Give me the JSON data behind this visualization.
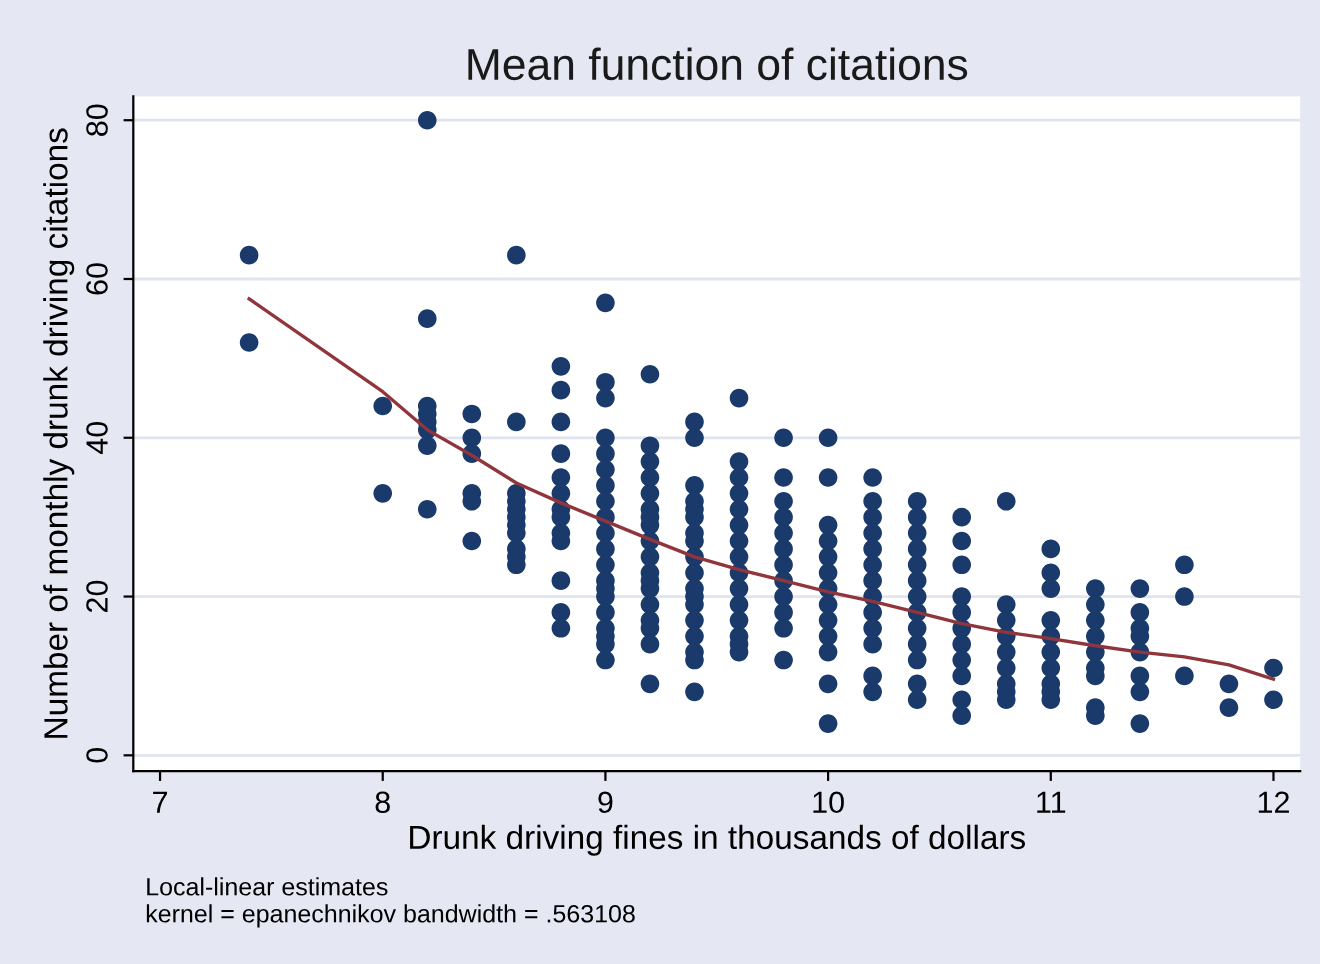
{
  "chart_data": {
    "type": "scatter",
    "title": "Mean function of citations",
    "xlabel": "Drunk driving fines in thousands of dollars",
    "ylabel": "Number of monthly drunk driving citations",
    "annotations": [
      "Local-linear estimates",
      "kernel = epanechnikov bandwidth = .563108"
    ],
    "series": [
      {
        "color": "#1a3a6c",
        "marker": "circle",
        "x": [
          7.4,
          7.4,
          8.0,
          8.0,
          8.2,
          8.2,
          8.2,
          8.2,
          8.2,
          8.2,
          8.2,
          8.2,
          8.4,
          8.4,
          8.4,
          8.4,
          8.4,
          8.4,
          8.6,
          8.6,
          8.6,
          8.6,
          8.6,
          8.6,
          8.6,
          8.6,
          8.6,
          8.6,
          8.6,
          8.8,
          8.8,
          8.8,
          8.8,
          8.8,
          8.8,
          8.8,
          8.8,
          8.8,
          8.8,
          8.8,
          8.8,
          8.8,
          9.0,
          9.0,
          9.0,
          9.0,
          9.0,
          9.0,
          9.0,
          9.0,
          9.0,
          9.0,
          9.0,
          9.0,
          9.0,
          9.0,
          9.0,
          9.0,
          9.0,
          9.0,
          9.0,
          9.0,
          9.2,
          9.2,
          9.2,
          9.2,
          9.2,
          9.2,
          9.2,
          9.2,
          9.2,
          9.2,
          9.2,
          9.2,
          9.2,
          9.2,
          9.2,
          9.2,
          9.2,
          9.2,
          9.4,
          9.4,
          9.4,
          9.4,
          9.4,
          9.4,
          9.4,
          9.4,
          9.4,
          9.4,
          9.4,
          9.4,
          9.4,
          9.4,
          9.4,
          9.4,
          9.4,
          9.4,
          9.6,
          9.6,
          9.6,
          9.6,
          9.6,
          9.6,
          9.6,
          9.6,
          9.6,
          9.6,
          9.6,
          9.6,
          9.6,
          9.6,
          9.6,
          9.8,
          9.8,
          9.8,
          9.8,
          9.8,
          9.8,
          9.8,
          9.8,
          9.8,
          9.8,
          9.8,
          9.8,
          10.0,
          10.0,
          10.0,
          10.0,
          10.0,
          10.0,
          10.0,
          10.0,
          10.0,
          10.0,
          10.0,
          10.0,
          10.0,
          10.2,
          10.2,
          10.2,
          10.2,
          10.2,
          10.2,
          10.2,
          10.2,
          10.2,
          10.2,
          10.2,
          10.2,
          10.2,
          10.4,
          10.4,
          10.4,
          10.4,
          10.4,
          10.4,
          10.4,
          10.4,
          10.4,
          10.4,
          10.4,
          10.4,
          10.4,
          10.6,
          10.6,
          10.6,
          10.6,
          10.6,
          10.6,
          10.6,
          10.6,
          10.6,
          10.6,
          10.6,
          10.8,
          10.8,
          10.8,
          10.8,
          10.8,
          10.8,
          10.8,
          10.8,
          10.8,
          11.0,
          11.0,
          11.0,
          11.0,
          11.0,
          11.0,
          11.0,
          11.0,
          11.0,
          11.0,
          11.2,
          11.2,
          11.2,
          11.2,
          11.2,
          11.2,
          11.2,
          11.2,
          11.2,
          11.4,
          11.4,
          11.4,
          11.4,
          11.4,
          11.4,
          11.4,
          11.4,
          11.6,
          11.6,
          11.6,
          11.8,
          11.8,
          12.0,
          12.0
        ],
        "values": [
          63,
          52,
          44,
          33,
          80,
          55,
          44,
          43,
          42,
          41,
          39,
          31,
          43,
          40,
          38,
          33,
          32,
          27,
          63,
          42,
          33,
          32,
          31,
          30,
          29,
          28,
          26,
          25,
          24,
          49,
          46,
          42,
          38,
          35,
          33,
          31,
          30,
          28,
          27,
          22,
          18,
          16,
          57,
          47,
          45,
          40,
          38,
          36,
          34,
          32,
          30,
          28,
          26,
          24,
          22,
          20,
          18,
          16,
          15,
          14,
          12,
          21,
          48,
          39,
          37,
          35,
          33,
          31,
          30,
          27,
          25,
          23,
          21,
          19,
          17,
          16,
          14,
          9,
          29,
          22,
          42,
          40,
          34,
          32,
          30,
          28,
          27,
          25,
          23,
          21,
          19,
          17,
          15,
          13,
          12,
          8,
          31,
          20,
          45,
          37,
          35,
          33,
          31,
          29,
          27,
          25,
          23,
          21,
          19,
          17,
          15,
          14,
          13,
          40,
          35,
          32,
          30,
          28,
          26,
          24,
          22,
          20,
          18,
          16,
          12,
          40,
          35,
          29,
          27,
          25,
          23,
          21,
          19,
          17,
          15,
          13,
          9,
          4,
          35,
          32,
          30,
          28,
          26,
          24,
          22,
          20,
          18,
          16,
          14,
          10,
          8,
          32,
          30,
          28,
          26,
          24,
          22,
          20,
          18,
          16,
          14,
          12,
          9,
          7,
          30,
          27,
          24,
          20,
          18,
          16,
          14,
          12,
          10,
          7,
          5,
          32,
          19,
          17,
          15,
          13,
          11,
          9,
          8,
          7,
          26,
          23,
          21,
          17,
          15,
          13,
          11,
          9,
          8,
          7,
          21,
          19,
          17,
          15,
          13,
          11,
          10,
          6,
          5,
          21,
          18,
          15,
          13,
          10,
          8,
          4,
          16,
          24,
          20,
          10,
          9,
          6,
          11,
          7
        ]
      },
      {
        "type": "line",
        "color": "#90353b",
        "x": [
          7.4,
          8.0,
          8.2,
          8.4,
          8.6,
          8.8,
          9.0,
          9.2,
          9.4,
          9.6,
          9.8,
          10.0,
          10.2,
          10.4,
          10.6,
          10.8,
          11.0,
          11.2,
          11.4,
          11.6,
          11.8,
          12.0
        ],
        "values": [
          57.5,
          45.8,
          41,
          37.8,
          34.3,
          31.8,
          29.5,
          27.2,
          25,
          23.4,
          22,
          20.6,
          19.4,
          18,
          16.6,
          15.5,
          14.7,
          13.8,
          13,
          12.4,
          11.4,
          9.6
        ]
      }
    ],
    "xlim": [
      6.88,
      12.12
    ],
    "ylim": [
      -2,
      83
    ],
    "xticks": [
      7,
      8,
      9,
      10,
      11,
      12
    ],
    "yticks": [
      0,
      20,
      40,
      60,
      80
    ],
    "grid": "y",
    "legend": false
  }
}
